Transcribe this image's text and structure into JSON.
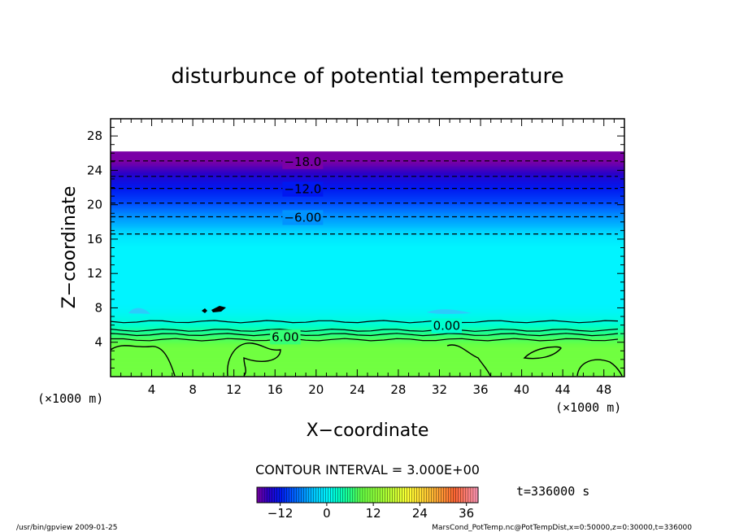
{
  "chart_data": {
    "type": "heatmap",
    "title": "disturbunce of potential temperature",
    "xlabel": "X−coordinate",
    "ylabel": "Z−coordinate",
    "x_unit_left": "(×1000 m)",
    "x_unit_right": "(×1000 m)",
    "xlim": [
      0,
      50
    ],
    "ylim": [
      0,
      30
    ],
    "xticks": [
      4,
      8,
      12,
      16,
      20,
      24,
      28,
      32,
      36,
      40,
      44,
      48
    ],
    "yticks": [
      4,
      8,
      12,
      16,
      20,
      24,
      28
    ],
    "contour_interval_text": "CONTOUR INTERVAL = 3.000E+00",
    "time_text": "t=336000 s",
    "colorbar": {
      "range": [
        -18,
        39
      ],
      "ticks": [
        -12,
        0,
        12,
        24,
        36
      ],
      "stops": [
        {
          "value": -18,
          "color": "#7a00a6"
        },
        {
          "value": -15,
          "color": "#2a00c8"
        },
        {
          "value": -12,
          "color": "#0018f0"
        },
        {
          "value": -9,
          "color": "#0055ff"
        },
        {
          "value": -6,
          "color": "#0090ff"
        },
        {
          "value": -3,
          "color": "#00ccff"
        },
        {
          "value": 0,
          "color": "#00f4ff"
        },
        {
          "value": 3,
          "color": "#00ffc8"
        },
        {
          "value": 6,
          "color": "#22ff88"
        },
        {
          "value": 9,
          "color": "#66ff44"
        },
        {
          "value": 15,
          "color": "#aaff33"
        },
        {
          "value": 21,
          "color": "#ffff33"
        },
        {
          "value": 27,
          "color": "#ffbb33"
        },
        {
          "value": 33,
          "color": "#ff6633"
        },
        {
          "value": 39,
          "color": "#ff99bb"
        }
      ]
    },
    "field_top_z": 26.2,
    "field_bands": [
      {
        "z": 26.2,
        "value": -20
      },
      {
        "z": 25.5,
        "value": -19
      },
      {
        "z": 24.5,
        "value": -17
      },
      {
        "z": 23.2,
        "value": -14
      },
      {
        "z": 21.9,
        "value": -12
      },
      {
        "z": 20.4,
        "value": -10
      },
      {
        "z": 18.7,
        "value": -6
      },
      {
        "z": 17.5,
        "value": -4
      },
      {
        "z": 16.2,
        "value": -1
      },
      {
        "z": 15.0,
        "value": 0
      },
      {
        "z": 8.5,
        "value": 0
      },
      {
        "z": 7.5,
        "value": 0.5
      },
      {
        "z": 6.2,
        "value": 2
      },
      {
        "z": 5.6,
        "value": 4
      },
      {
        "z": 5.0,
        "value": 6
      },
      {
        "z": 4.3,
        "value": 8
      },
      {
        "z": 3.2,
        "value": 10
      },
      {
        "z": 0,
        "value": 10
      }
    ],
    "contour_lines": [
      {
        "z": 25.1,
        "dashed": true
      },
      {
        "z": 23.3,
        "dashed": true
      },
      {
        "z": 21.9,
        "dashed": true
      },
      {
        "z": 20.2,
        "dashed": true
      },
      {
        "z": 18.6,
        "dashed": true
      },
      {
        "z": 16.6,
        "dashed": true
      },
      {
        "z": 6.4,
        "dashed": false
      },
      {
        "z": 5.4,
        "dashed": false
      },
      {
        "z": 4.9,
        "dashed": false
      },
      {
        "z": 4.3,
        "dashed": false
      }
    ],
    "contour_labels": [
      {
        "x": 18.7,
        "z": 25.1,
        "text": "−18.0"
      },
      {
        "x": 18.7,
        "z": 21.9,
        "text": "−12.0"
      },
      {
        "x": 18.7,
        "z": 18.6,
        "text": "−6.00"
      },
      {
        "x": 32.7,
        "z": 6.0,
        "text": "0.00"
      },
      {
        "x": 17.0,
        "z": 4.7,
        "text": "6.00"
      }
    ]
  },
  "footer": {
    "left": "/usr/bin/gpview   2009-01-25",
    "right": "MarsCond_PotTemp.nc@PotTempDist,x=0:50000,z=0:30000,t=336000"
  }
}
